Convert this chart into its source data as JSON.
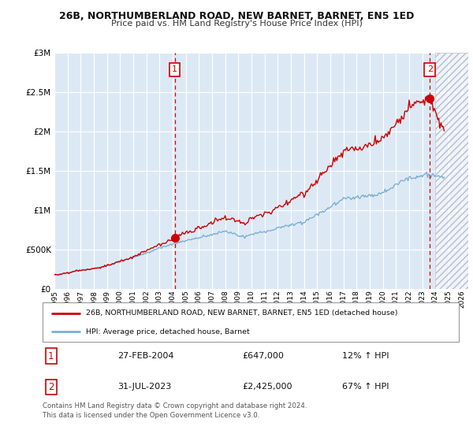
{
  "title": "26B, NORTHUMBERLAND ROAD, NEW BARNET, BARNET, EN5 1ED",
  "subtitle": "Price paid vs. HM Land Registry's House Price Index (HPI)",
  "legend_line1": "26B, NORTHUMBERLAND ROAD, NEW BARNET, BARNET, EN5 1ED (detached house)",
  "legend_line2": "HPI: Average price, detached house, Barnet",
  "sale1_date": "27-FEB-2004",
  "sale1_price": "£647,000",
  "sale1_hpi": "12% ↑ HPI",
  "sale2_date": "31-JUL-2023",
  "sale2_price": "£2,425,000",
  "sale2_hpi": "67% ↑ HPI",
  "footer": "Contains HM Land Registry data © Crown copyright and database right 2024.\nThis data is licensed under the Open Government Licence v3.0.",
  "hpi_color": "#7bafd4",
  "price_color": "#cc0000",
  "dashed_line_color": "#cc0000",
  "chart_bg_color": "#dce9f5",
  "fig_bg_color": "#ffffff",
  "ylim_max": 3000000,
  "xlim_start": 1995.0,
  "xlim_end": 2026.5,
  "sale1_x": 2004.15,
  "sale2_x": 2023.58,
  "sale1_price_val": 647000,
  "sale2_price_val": 2425000
}
